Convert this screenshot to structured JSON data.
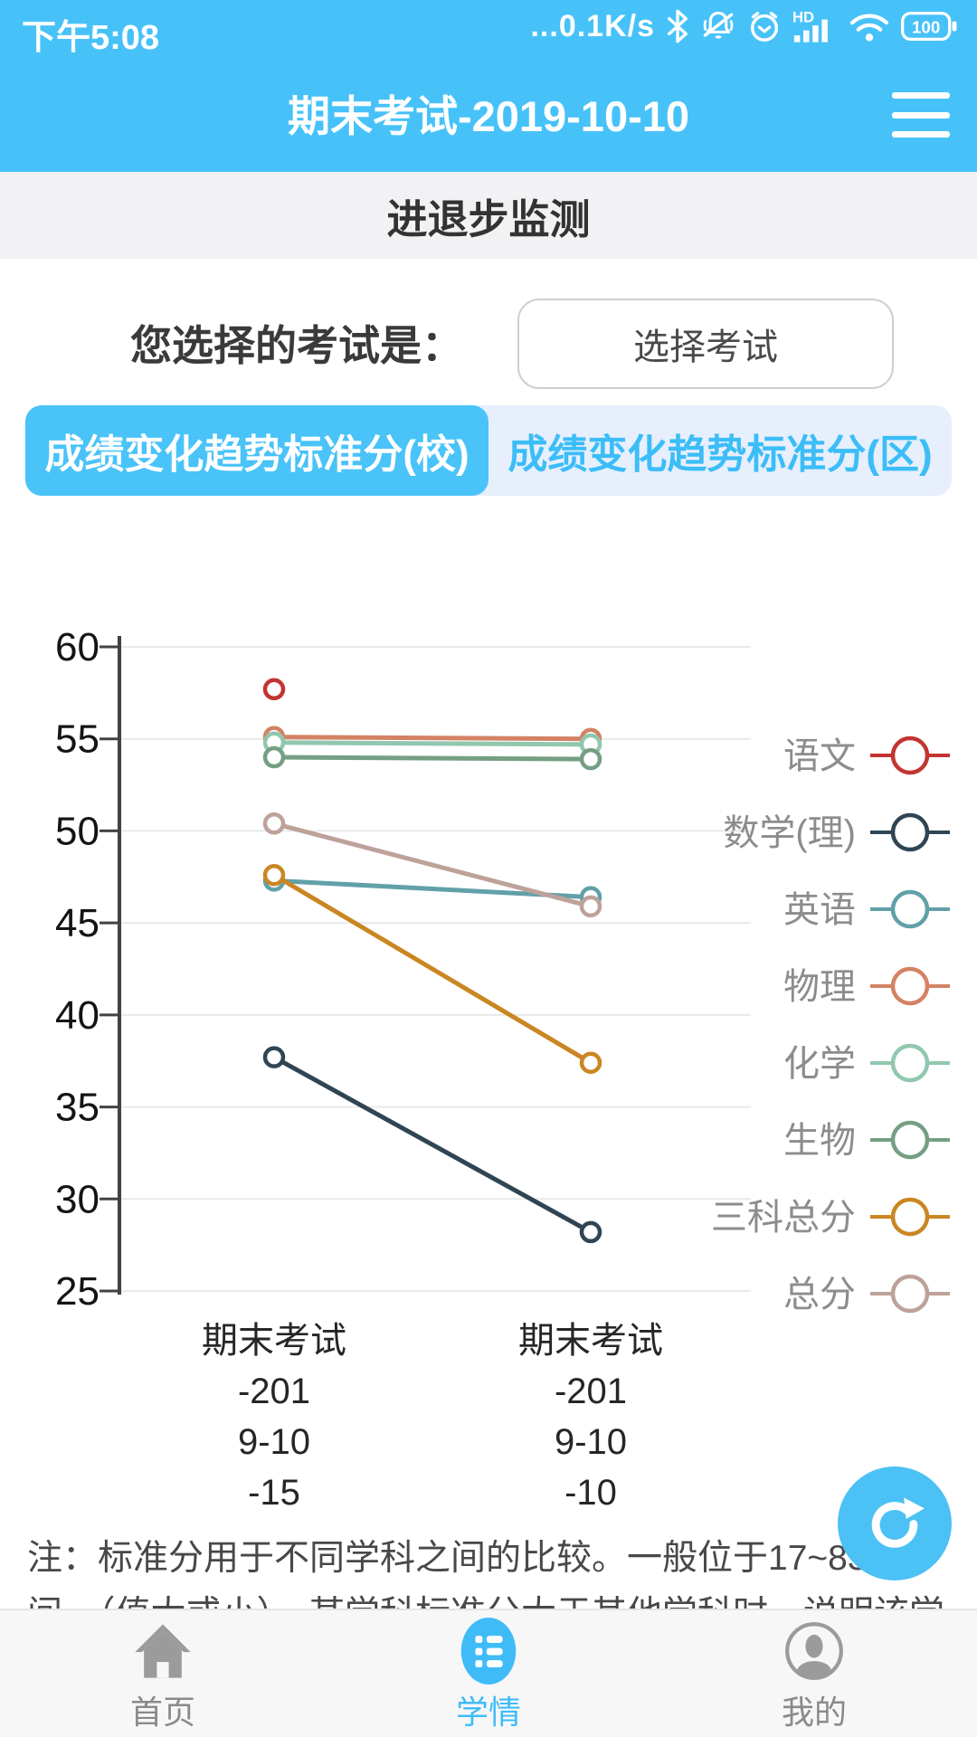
{
  "status_bar": {
    "time": "下午5:08",
    "net_speed": "...0.1K/s",
    "battery_level": "100",
    "icons": [
      "bluetooth-icon",
      "bell-muted-icon",
      "alarm-icon",
      "hd-signal-icon",
      "wifi-icon",
      "battery-icon"
    ]
  },
  "header": {
    "title": "期末考试-2019-10-10",
    "menu_icon": "hamburger-menu-icon"
  },
  "page": {
    "section_title": "进退步监测",
    "exam_select_label": "您选择的考试是：",
    "exam_select_button": "选择考试"
  },
  "tabs": [
    {
      "label": "成绩变化趋势标准分(校)",
      "active": true
    },
    {
      "label": "成绩变化趋势标准分(区)",
      "active": false
    }
  ],
  "chart_data": {
    "type": "line",
    "categories_lines": [
      [
        "期末考试",
        "-201",
        "9-10",
        "-15"
      ],
      [
        "期末考试",
        "-201",
        "9-10",
        "-10"
      ]
    ],
    "series": [
      {
        "name": "语文",
        "color": "#c23531",
        "values": [
          57.7,
          null
        ]
      },
      {
        "name": "数学(理)",
        "color": "#2f4554",
        "values": [
          37.7,
          28.2
        ]
      },
      {
        "name": "英语",
        "color": "#61a0a8",
        "values": [
          47.3,
          46.4
        ]
      },
      {
        "name": "物理",
        "color": "#d48265",
        "values": [
          55.1,
          55.0
        ]
      },
      {
        "name": "化学",
        "color": "#91c7ae",
        "values": [
          54.8,
          54.7
        ]
      },
      {
        "name": "生物",
        "color": "#749f83",
        "values": [
          54.0,
          53.9
        ]
      },
      {
        "name": "三科总分",
        "color": "#ca8622",
        "values": [
          47.6,
          37.4
        ]
      },
      {
        "name": "总分",
        "color": "#bda29a",
        "values": [
          50.4,
          45.9
        ]
      }
    ],
    "ylim": [
      25,
      60
    ],
    "ytick_step": 5,
    "grid": true,
    "legend_position": "right"
  },
  "note": {
    "text": "注：标准分用于不同学科之间的比较。一般位于17~83之间，（值大或小）。某学科标准分大于其他学科时，说明该学科相对较优"
  },
  "fab": {
    "icon": "refresh-icon"
  },
  "bottom_nav": [
    {
      "label": "首页",
      "icon": "home-icon",
      "active": false
    },
    {
      "label": "学情",
      "icon": "list-icon",
      "active": true
    },
    {
      "label": "我的",
      "icon": "profile-icon",
      "active": false
    }
  ],
  "colors": {
    "accent_blue": "#47c2f9",
    "tab_active_blue": "#49c3f8",
    "tab_inactive_text": "#3bbdf8",
    "nav_active_blue": "#3fbcf7",
    "section_bg": "#f2f2f4",
    "grid_line": "#e9e9e9",
    "axis": "#424242",
    "legend_text": "#8c8c8c"
  }
}
